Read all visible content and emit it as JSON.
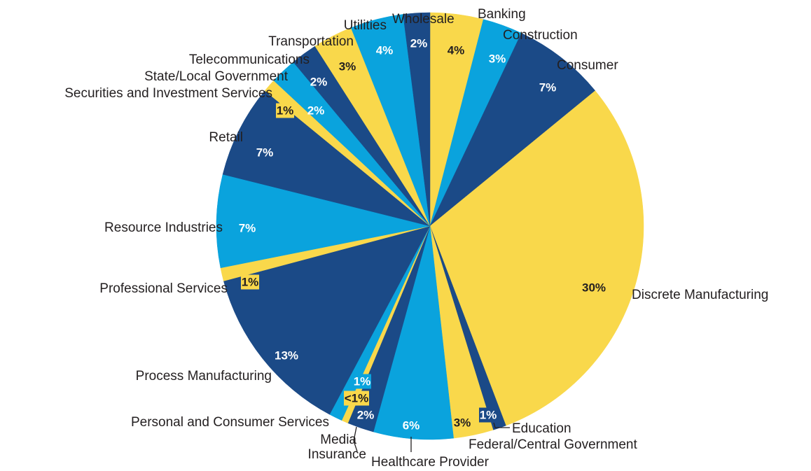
{
  "colors": {
    "yellow": "#f9d84b",
    "light_blue": "#0aa3dd",
    "dark_blue": "#1b4a87"
  },
  "chart_data": {
    "type": "pie",
    "title": "",
    "start_angle_deg": 0,
    "direction": "clockwise",
    "slices": [
      {
        "label": "Banking",
        "value": 4,
        "display": "4%",
        "color": "yellow"
      },
      {
        "label": "Construction",
        "value": 3,
        "display": "3%",
        "color": "light_blue"
      },
      {
        "label": "Consumer",
        "value": 7,
        "display": "7%",
        "color": "dark_blue"
      },
      {
        "label": "Discrete Manufacturing",
        "value": 30,
        "display": "30%",
        "color": "yellow"
      },
      {
        "label": "Education",
        "value": 1,
        "display": "1%",
        "color": "dark_blue"
      },
      {
        "label": "Federal/Central Government",
        "value": 3,
        "display": "3%",
        "color": "yellow"
      },
      {
        "label": "Healthcare Provider",
        "value": 6,
        "display": "6%",
        "color": "light_blue"
      },
      {
        "label": "Insurance",
        "value": 2,
        "display": "2%",
        "color": "dark_blue"
      },
      {
        "label": "Media",
        "value": 0.5,
        "display": "<1%",
        "color": "yellow"
      },
      {
        "label": "Personal and Consumer Services",
        "value": 1,
        "display": "1%",
        "color": "light_blue"
      },
      {
        "label": "Process Manufacturing",
        "value": 13,
        "display": "13%",
        "color": "dark_blue"
      },
      {
        "label": "Professional Services",
        "value": 1,
        "display": "1%",
        "color": "yellow"
      },
      {
        "label": "Resource Industries",
        "value": 7,
        "display": "7%",
        "color": "light_blue"
      },
      {
        "label": "Retail",
        "value": 7,
        "display": "7%",
        "color": "dark_blue"
      },
      {
        "label": "Securities and Investment Services",
        "value": 1,
        "display": "1%",
        "color": "yellow"
      },
      {
        "label": "State/Local Government",
        "value": 2,
        "display": "2%",
        "color": "light_blue"
      },
      {
        "label": "Telecommunications",
        "value": 2,
        "display": "2%",
        "color": "dark_blue"
      },
      {
        "label": "Transportation",
        "value": 3,
        "display": "3%",
        "color": "yellow"
      },
      {
        "label": "Utilities",
        "value": 4,
        "display": "4%",
        "color": "light_blue"
      },
      {
        "label": "Wholesale",
        "value": 2,
        "display": "2%",
        "color": "dark_blue"
      }
    ]
  }
}
